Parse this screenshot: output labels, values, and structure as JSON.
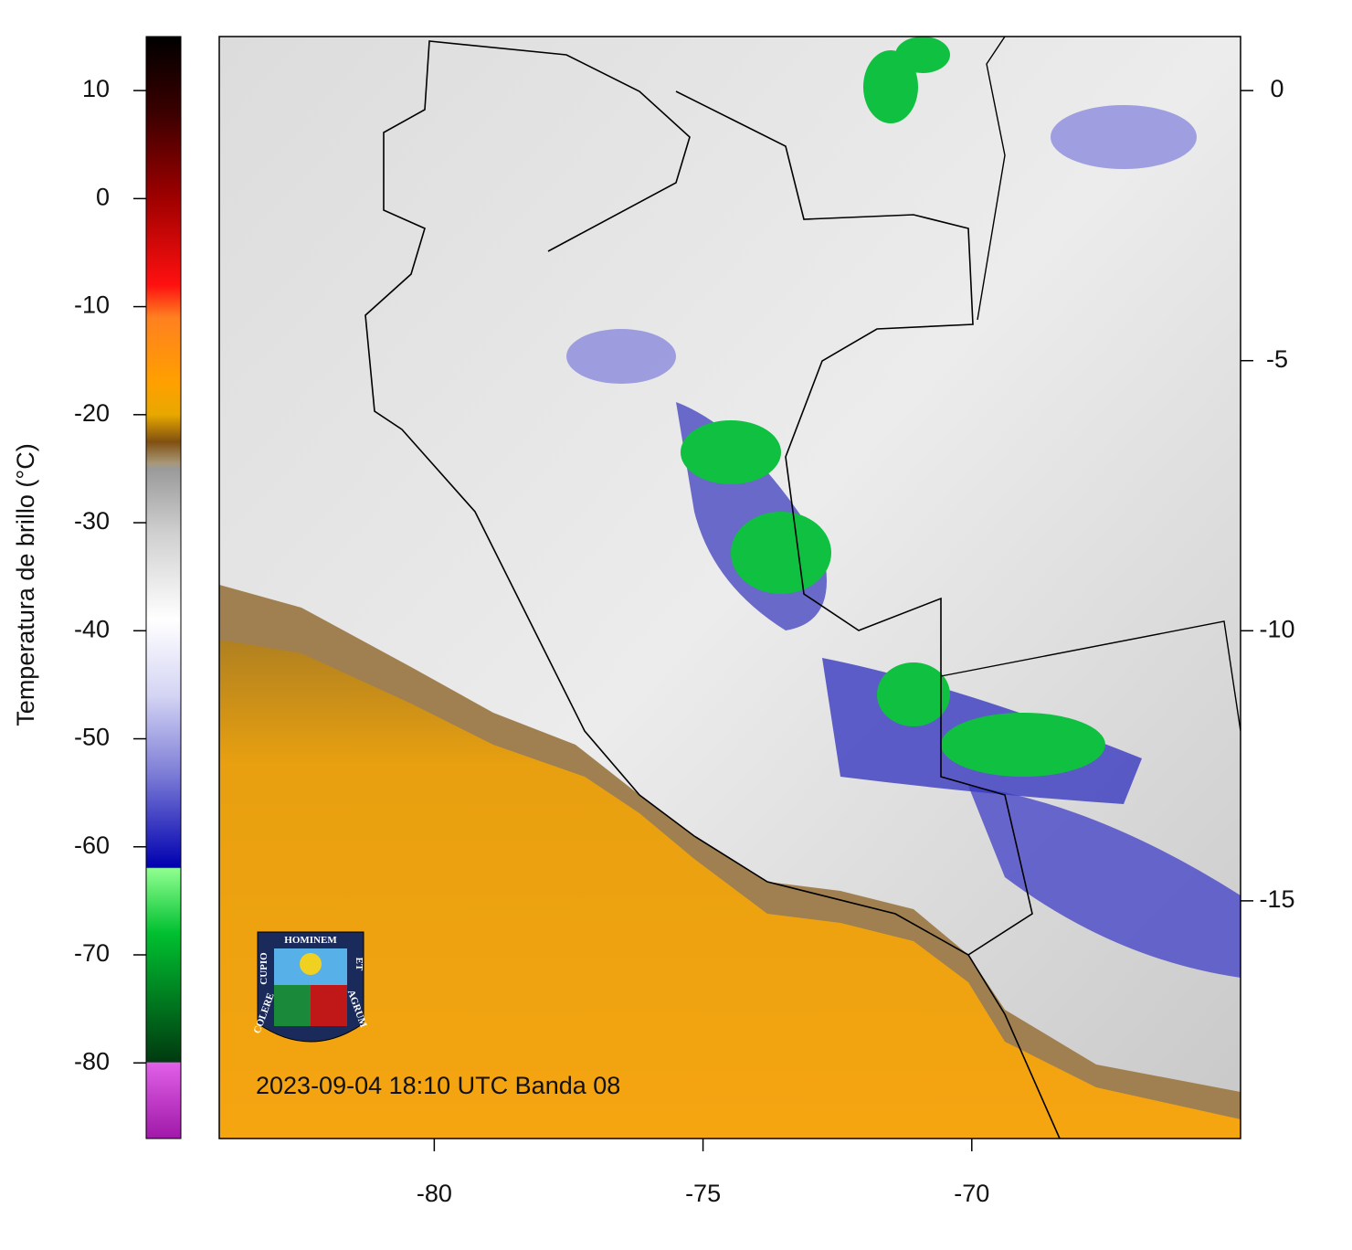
{
  "colorbar": {
    "label": "Temperatura de brillo (°C)",
    "lim": [
      -87,
      15
    ],
    "ticks": [
      10,
      0,
      -10,
      -20,
      -30,
      -40,
      -50,
      -60,
      -70,
      -80
    ],
    "color_stops": [
      {
        "value": 15,
        "color": "#000000"
      },
      {
        "value": 8,
        "color": "#3a0000"
      },
      {
        "value": 0,
        "color": "#a00000"
      },
      {
        "value": -8,
        "color": "#ff1010"
      },
      {
        "value": -11,
        "color": "#ff8020"
      },
      {
        "value": -17,
        "color": "#ffa000"
      },
      {
        "value": -20,
        "color": "#e8a800"
      },
      {
        "value": -22.5,
        "color": "#805010"
      },
      {
        "value": -24.5,
        "color": "#a89878"
      },
      {
        "value": -25,
        "color": "#9a9a9a"
      },
      {
        "value": -31,
        "color": "#d0d0d0"
      },
      {
        "value": -39,
        "color": "#ffffff"
      },
      {
        "value": -46,
        "color": "#d4d4f4"
      },
      {
        "value": -53,
        "color": "#8080d8"
      },
      {
        "value": -61.9,
        "color": "#0000b0"
      },
      {
        "value": -62,
        "color": "#90ff90"
      },
      {
        "value": -68,
        "color": "#00c030"
      },
      {
        "value": -79.9,
        "color": "#003a10"
      },
      {
        "value": -80,
        "color": "#e060e8"
      },
      {
        "value": -87,
        "color": "#a018a8"
      }
    ]
  },
  "map": {
    "xlim": [
      -84,
      -65
    ],
    "ylim": [
      -19.4,
      1
    ],
    "xticks": [
      -80,
      -75,
      -70
    ],
    "yticks": [
      0,
      -5,
      -10,
      -15
    ],
    "annotation": "2023-09-04 18:10 UTC Banda 08"
  },
  "logo": {
    "top": "HOMINEM",
    "left_upper": "CUPIO",
    "left_lower": "COLERE",
    "right_upper": "ET",
    "right_lower": "AGRUM"
  }
}
